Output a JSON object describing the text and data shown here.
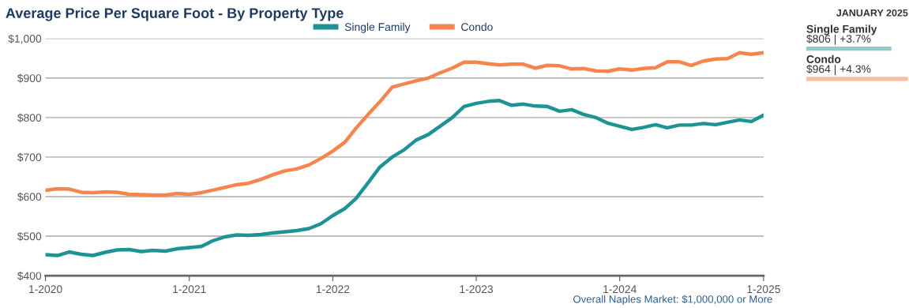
{
  "chart_data": [
    {
      "type": "line",
      "title": "Average Price Per Square Foot - By Property Type",
      "x": [
        "2020-01",
        "2020-02",
        "2020-03",
        "2020-04",
        "2020-05",
        "2020-06",
        "2020-07",
        "2020-08",
        "2020-09",
        "2020-10",
        "2020-11",
        "2020-12",
        "2021-01",
        "2021-02",
        "2021-03",
        "2021-04",
        "2021-05",
        "2021-06",
        "2021-07",
        "2021-08",
        "2021-09",
        "2021-10",
        "2021-11",
        "2021-12",
        "2022-01",
        "2022-02",
        "2022-03",
        "2022-04",
        "2022-05",
        "2022-06",
        "2022-07",
        "2022-08",
        "2022-09",
        "2022-10",
        "2022-11",
        "2022-12",
        "2023-01",
        "2023-02",
        "2023-03",
        "2023-04",
        "2023-05",
        "2023-06",
        "2023-07",
        "2023-08",
        "2023-09",
        "2023-10",
        "2023-11",
        "2023-12",
        "2024-01",
        "2024-02",
        "2024-03",
        "2024-04",
        "2024-05",
        "2024-06",
        "2024-07",
        "2024-08",
        "2024-09",
        "2024-10",
        "2024-11",
        "2024-12",
        "2025-01"
      ],
      "series": [
        {
          "name": "Single Family",
          "color": "#1f9296",
          "values": [
            453,
            451,
            460,
            454,
            451,
            459,
            465,
            466,
            461,
            464,
            462,
            468,
            471,
            474,
            488,
            498,
            503,
            502,
            504,
            508,
            511,
            514,
            519,
            531,
            552,
            570,
            595,
            635,
            675,
            700,
            718,
            743,
            757,
            778,
            800,
            828,
            836,
            841,
            843,
            831,
            834,
            829,
            828,
            816,
            820,
            808,
            800,
            786,
            778,
            770,
            775,
            782,
            774,
            781,
            781,
            785,
            782,
            788,
            794,
            790,
            806
          ]
        },
        {
          "name": "Condo",
          "color": "#f5854c",
          "values": [
            616,
            620,
            619,
            611,
            610,
            612,
            611,
            606,
            605,
            604,
            604,
            608,
            606,
            610,
            616,
            623,
            630,
            634,
            643,
            655,
            665,
            670,
            680,
            696,
            715,
            738,
            773,
            808,
            840,
            877,
            885,
            893,
            900,
            913,
            925,
            940,
            940,
            936,
            933,
            935,
            935,
            925,
            932,
            931,
            923,
            924,
            918,
            917,
            923,
            920,
            924,
            926,
            941,
            941,
            932,
            943,
            948,
            949,
            964,
            960,
            964
          ]
        }
      ],
      "xlim": [
        "2020-01",
        "2025-01"
      ],
      "xticks": [
        {
          "value": "2020-01",
          "label": "1-2020"
        },
        {
          "value": "2021-01",
          "label": "1-2021"
        },
        {
          "value": "2022-01",
          "label": "1-2022"
        },
        {
          "value": "2023-01",
          "label": "1-2023"
        },
        {
          "value": "2024-01",
          "label": "1-2024"
        },
        {
          "value": "2025-01",
          "label": "1-2025"
        }
      ],
      "ylim": [
        400,
        1000
      ],
      "yticks": [
        {
          "value": 400,
          "label": "$400"
        },
        {
          "value": 500,
          "label": "$500"
        },
        {
          "value": 600,
          "label": "$600"
        },
        {
          "value": 700,
          "label": "$700"
        },
        {
          "value": 800,
          "label": "$800"
        },
        {
          "value": 900,
          "label": "$900"
        },
        {
          "value": 1000,
          "label": "$1,000"
        }
      ],
      "grid": "y",
      "legend": "top",
      "marker": "none",
      "line_style": "solid",
      "annotations": [
        "Overall Naples Market: $1,000,000 or More"
      ]
    },
    {
      "type": "bar",
      "orientation": "horizontal",
      "title": "JANUARY 2025",
      "categories": [
        "Single Family",
        "Condo"
      ],
      "values": [
        806,
        964
      ],
      "colors": [
        "#8ecbc9",
        "#f8bea2"
      ],
      "value_labels": [
        "$806 | +3.7%",
        "$964 | +4.3%"
      ]
    }
  ]
}
